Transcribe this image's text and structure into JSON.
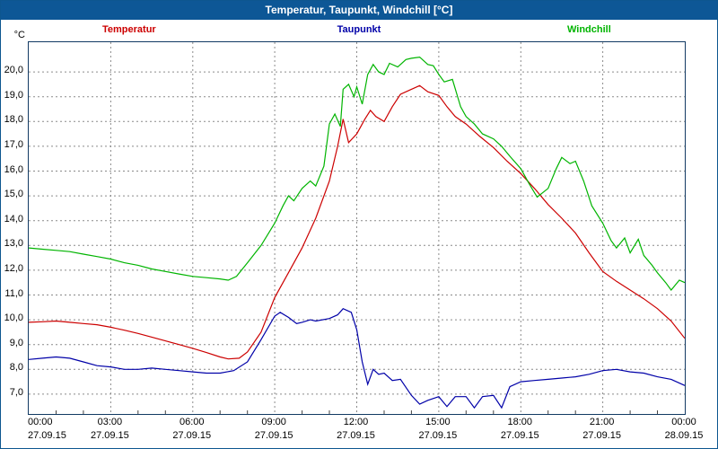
{
  "header": {
    "title": "Temperatur, Taupunkt, Windchill [°C]"
  },
  "chart_data": {
    "type": "line",
    "title": "Temperatur, Taupunkt, Windchill [°C]",
    "xlabel": "",
    "ylabel": "°C",
    "xlim": [
      0,
      24
    ],
    "ylim": [
      6.2,
      21.2
    ],
    "grid": "dashed",
    "grid_color": "#8a8a8a",
    "legend_position": "top",
    "y_ticks": [
      7,
      8,
      9,
      10,
      11,
      12,
      13,
      14,
      15,
      16,
      17,
      18,
      19,
      20
    ],
    "y_tick_labels": [
      "7,0",
      "8,0",
      "9,0",
      "10,0",
      "11,0",
      "12,0",
      "13,0",
      "14,0",
      "15,0",
      "16,0",
      "17,0",
      "18,0",
      "19,0",
      "20,0"
    ],
    "x_ticks": [
      0,
      3,
      6,
      9,
      12,
      15,
      18,
      21,
      24
    ],
    "x_tick_time_labels": [
      "00:00",
      "03:00",
      "06:00",
      "09:00",
      "12:00",
      "15:00",
      "18:00",
      "21:00",
      "00:00"
    ],
    "x_tick_date_labels": [
      "27.09.15",
      "27.09.15",
      "27.09.15",
      "27.09.15",
      "27.09.15",
      "27.09.15",
      "27.09.15",
      "27.09.15",
      "28.09.15"
    ],
    "series": [
      {
        "name": "Temperatur",
        "color": "#cc0000",
        "points": [
          [
            0,
            9.9
          ],
          [
            0.5,
            9.92
          ],
          [
            1,
            9.95
          ],
          [
            1.5,
            9.9
          ],
          [
            2,
            9.85
          ],
          [
            2.5,
            9.8
          ],
          [
            3,
            9.7
          ],
          [
            3.5,
            9.58
          ],
          [
            4,
            9.45
          ],
          [
            4.5,
            9.3
          ],
          [
            5,
            9.15
          ],
          [
            5.5,
            9.0
          ],
          [
            6,
            8.85
          ],
          [
            6.5,
            8.68
          ],
          [
            7,
            8.5
          ],
          [
            7.3,
            8.42
          ],
          [
            7.7,
            8.45
          ],
          [
            8,
            8.7
          ],
          [
            8.5,
            9.5
          ],
          [
            9,
            10.9
          ],
          [
            9.5,
            11.9
          ],
          [
            10,
            12.9
          ],
          [
            10.5,
            14.1
          ],
          [
            11,
            15.6
          ],
          [
            11.3,
            17.0
          ],
          [
            11.5,
            18.1
          ],
          [
            11.7,
            17.15
          ],
          [
            12,
            17.5
          ],
          [
            12.3,
            18.1
          ],
          [
            12.5,
            18.45
          ],
          [
            12.7,
            18.2
          ],
          [
            13,
            18.0
          ],
          [
            13.3,
            18.6
          ],
          [
            13.6,
            19.1
          ],
          [
            14,
            19.3
          ],
          [
            14.3,
            19.45
          ],
          [
            14.6,
            19.2
          ],
          [
            15,
            19.05
          ],
          [
            15.3,
            18.6
          ],
          [
            15.6,
            18.2
          ],
          [
            16,
            17.9
          ],
          [
            16.5,
            17.4
          ],
          [
            17,
            16.95
          ],
          [
            17.5,
            16.4
          ],
          [
            18,
            15.9
          ],
          [
            18.5,
            15.3
          ],
          [
            19,
            14.65
          ],
          [
            19.5,
            14.1
          ],
          [
            20,
            13.5
          ],
          [
            20.5,
            12.7
          ],
          [
            21,
            11.95
          ],
          [
            21.5,
            11.55
          ],
          [
            22,
            11.2
          ],
          [
            22.5,
            10.85
          ],
          [
            23,
            10.45
          ],
          [
            23.5,
            9.95
          ],
          [
            24,
            9.25
          ]
        ]
      },
      {
        "name": "Taupunkt",
        "color": "#0000a8",
        "points": [
          [
            0,
            8.4
          ],
          [
            0.5,
            8.45
          ],
          [
            1,
            8.5
          ],
          [
            1.5,
            8.45
          ],
          [
            2,
            8.3
          ],
          [
            2.5,
            8.15
          ],
          [
            3,
            8.1
          ],
          [
            3.5,
            8.0
          ],
          [
            4,
            8.0
          ],
          [
            4.5,
            8.05
          ],
          [
            5,
            8.0
          ],
          [
            5.5,
            7.95
          ],
          [
            6,
            7.9
          ],
          [
            6.5,
            7.85
          ],
          [
            7,
            7.85
          ],
          [
            7.5,
            7.95
          ],
          [
            8,
            8.3
          ],
          [
            8.5,
            9.2
          ],
          [
            9,
            10.15
          ],
          [
            9.2,
            10.3
          ],
          [
            9.5,
            10.1
          ],
          [
            9.8,
            9.85
          ],
          [
            10,
            9.9
          ],
          [
            10.3,
            10.0
          ],
          [
            10.5,
            9.95
          ],
          [
            11,
            10.05
          ],
          [
            11.3,
            10.2
          ],
          [
            11.5,
            10.45
          ],
          [
            11.8,
            10.3
          ],
          [
            12,
            9.6
          ],
          [
            12.2,
            8.3
          ],
          [
            12.4,
            7.4
          ],
          [
            12.6,
            8.0
          ],
          [
            12.8,
            7.8
          ],
          [
            13,
            7.85
          ],
          [
            13.3,
            7.55
          ],
          [
            13.6,
            7.6
          ],
          [
            14,
            6.95
          ],
          [
            14.3,
            6.6
          ],
          [
            14.6,
            6.75
          ],
          [
            15,
            6.9
          ],
          [
            15.3,
            6.5
          ],
          [
            15.6,
            6.9
          ],
          [
            16,
            6.9
          ],
          [
            16.3,
            6.45
          ],
          [
            16.6,
            6.9
          ],
          [
            17,
            6.95
          ],
          [
            17.3,
            6.45
          ],
          [
            17.6,
            7.3
          ],
          [
            18,
            7.5
          ],
          [
            18.5,
            7.55
          ],
          [
            19,
            7.6
          ],
          [
            19.5,
            7.65
          ],
          [
            20,
            7.7
          ],
          [
            20.5,
            7.8
          ],
          [
            21,
            7.95
          ],
          [
            21.5,
            8.0
          ],
          [
            22,
            7.9
          ],
          [
            22.5,
            7.85
          ],
          [
            23,
            7.7
          ],
          [
            23.5,
            7.6
          ],
          [
            24,
            7.35
          ]
        ]
      },
      {
        "name": "Windchill",
        "color": "#00b400",
        "points": [
          [
            0,
            12.9
          ],
          [
            0.5,
            12.85
          ],
          [
            1,
            12.8
          ],
          [
            1.5,
            12.75
          ],
          [
            2,
            12.65
          ],
          [
            2.5,
            12.55
          ],
          [
            3,
            12.45
          ],
          [
            3.5,
            12.3
          ],
          [
            4,
            12.2
          ],
          [
            4.5,
            12.05
          ],
          [
            5,
            11.95
          ],
          [
            5.5,
            11.85
          ],
          [
            6,
            11.75
          ],
          [
            6.5,
            11.7
          ],
          [
            7,
            11.65
          ],
          [
            7.3,
            11.6
          ],
          [
            7.6,
            11.75
          ],
          [
            8,
            12.3
          ],
          [
            8.5,
            13.0
          ],
          [
            9,
            13.9
          ],
          [
            9.3,
            14.6
          ],
          [
            9.5,
            15.0
          ],
          [
            9.7,
            14.8
          ],
          [
            10,
            15.3
          ],
          [
            10.3,
            15.6
          ],
          [
            10.5,
            15.4
          ],
          [
            10.8,
            16.2
          ],
          [
            11,
            17.9
          ],
          [
            11.2,
            18.3
          ],
          [
            11.4,
            17.8
          ],
          [
            11.5,
            19.3
          ],
          [
            11.7,
            19.5
          ],
          [
            11.9,
            19.0
          ],
          [
            12,
            19.4
          ],
          [
            12.2,
            18.7
          ],
          [
            12.4,
            19.9
          ],
          [
            12.6,
            20.3
          ],
          [
            12.8,
            20.0
          ],
          [
            13,
            19.9
          ],
          [
            13.2,
            20.35
          ],
          [
            13.5,
            20.2
          ],
          [
            13.8,
            20.5
          ],
          [
            14,
            20.55
          ],
          [
            14.3,
            20.6
          ],
          [
            14.6,
            20.3
          ],
          [
            14.8,
            20.25
          ],
          [
            15,
            19.9
          ],
          [
            15.2,
            19.6
          ],
          [
            15.5,
            19.7
          ],
          [
            15.8,
            18.6
          ],
          [
            16,
            18.2
          ],
          [
            16.3,
            17.9
          ],
          [
            16.6,
            17.5
          ],
          [
            17,
            17.3
          ],
          [
            17.3,
            17.0
          ],
          [
            17.6,
            16.6
          ],
          [
            18,
            16.1
          ],
          [
            18.3,
            15.5
          ],
          [
            18.6,
            14.95
          ],
          [
            19,
            15.3
          ],
          [
            19.3,
            16.1
          ],
          [
            19.5,
            16.55
          ],
          [
            19.8,
            16.3
          ],
          [
            20,
            16.4
          ],
          [
            20.3,
            15.6
          ],
          [
            20.6,
            14.6
          ],
          [
            21,
            13.9
          ],
          [
            21.3,
            13.2
          ],
          [
            21.5,
            12.9
          ],
          [
            21.8,
            13.3
          ],
          [
            22,
            12.7
          ],
          [
            22.3,
            13.25
          ],
          [
            22.5,
            12.6
          ],
          [
            22.8,
            12.2
          ],
          [
            23,
            11.9
          ],
          [
            23.3,
            11.5
          ],
          [
            23.5,
            11.2
          ],
          [
            23.8,
            11.6
          ],
          [
            24,
            11.5
          ]
        ]
      }
    ]
  }
}
